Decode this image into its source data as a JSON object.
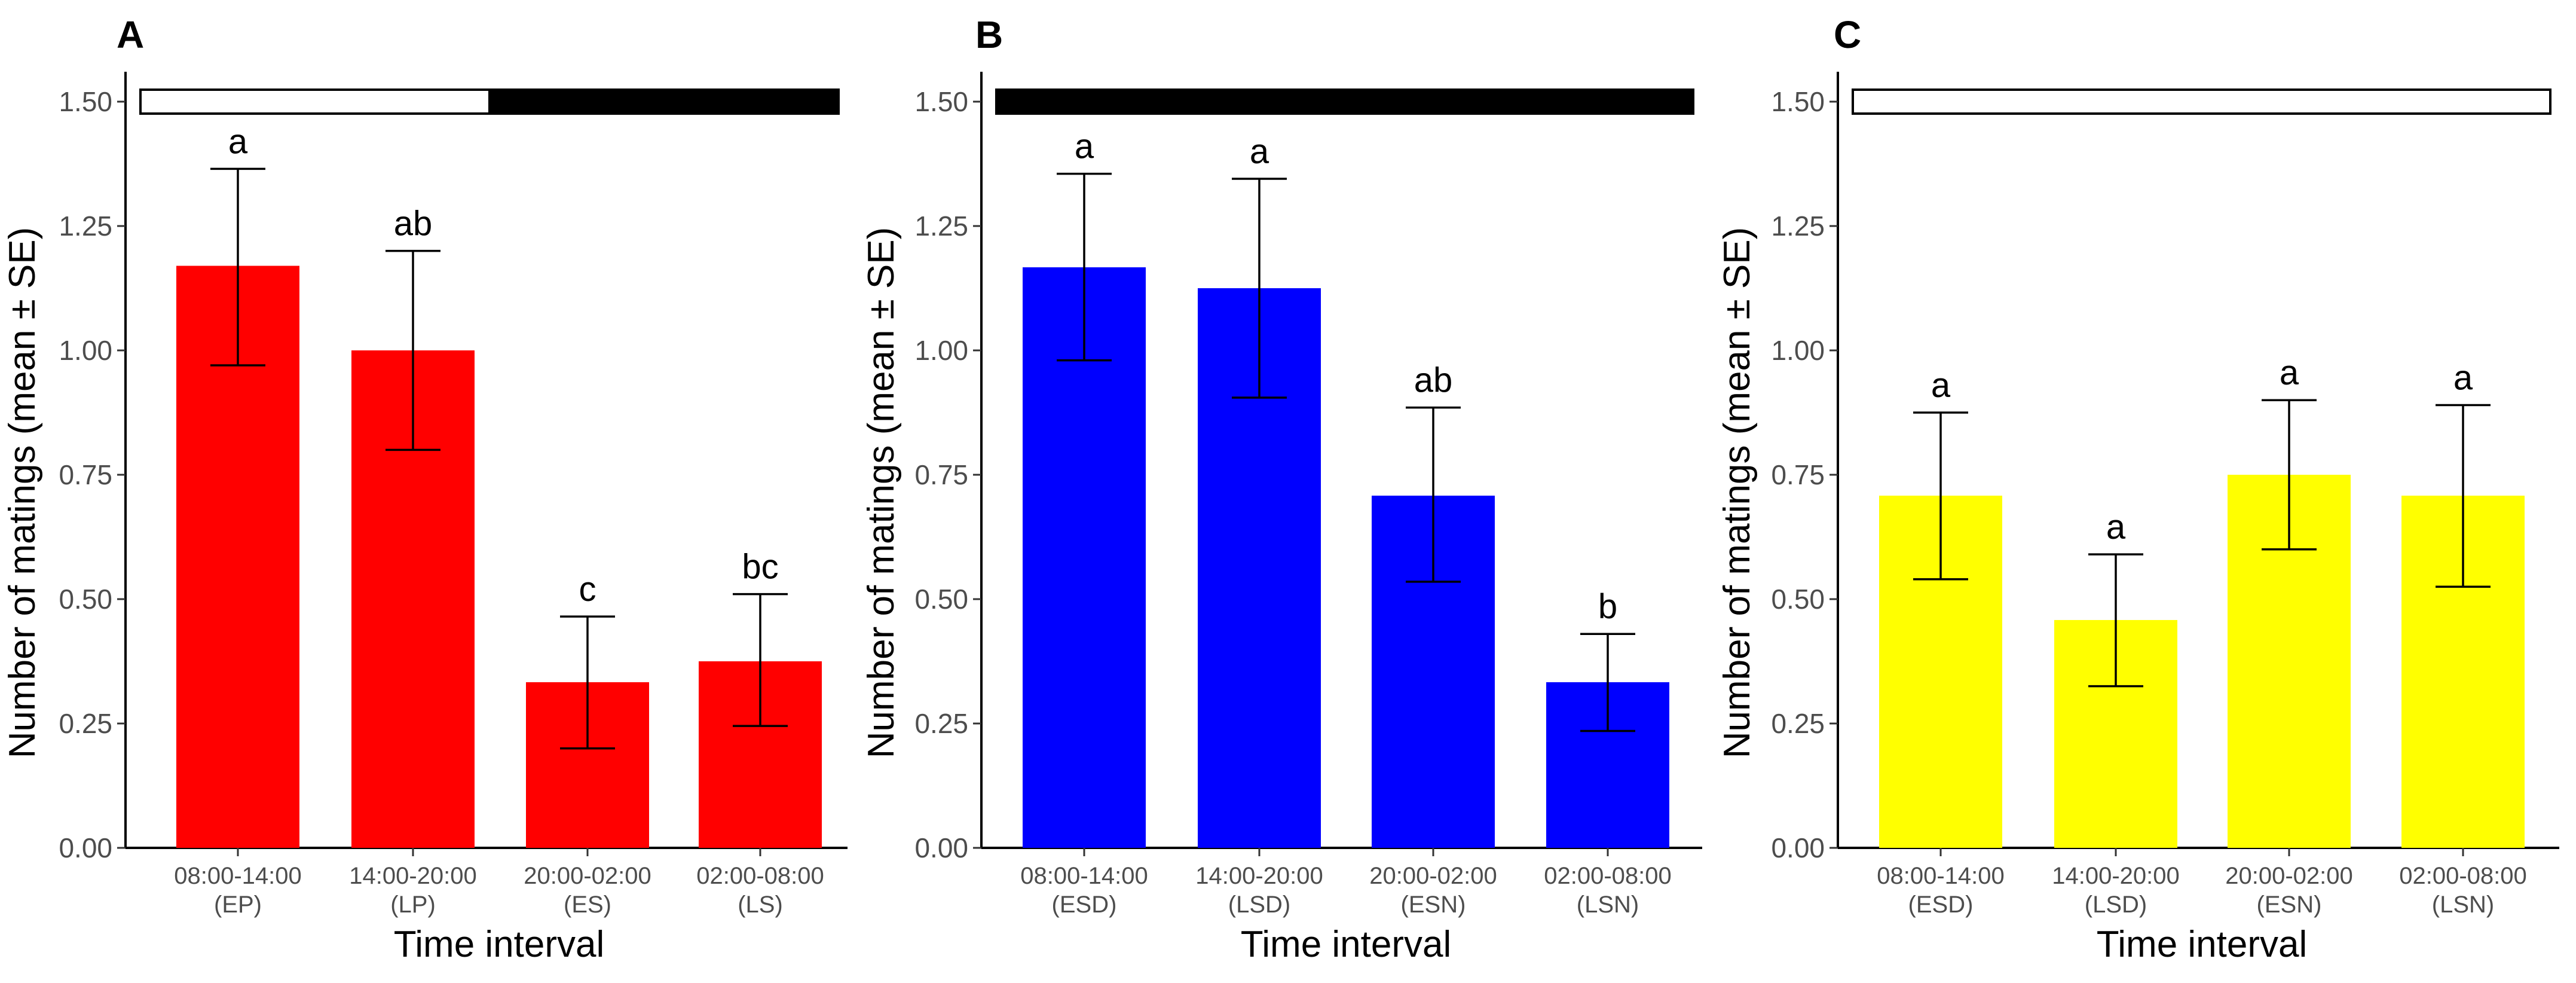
{
  "chart_data": [
    {
      "type": "bar",
      "panel": "A",
      "light_bar": "light then dark",
      "bar_color": "#ff0000",
      "categories": [
        "08:00-14:00\n(EP)",
        "14:00-20:00\n(LP)",
        "20:00-02:00\n(ES)",
        "02:00-08:00\n(LS)"
      ],
      "values": [
        1.17,
        1.0,
        0.333,
        0.375
      ],
      "error_low": [
        0.97,
        0.8,
        0.2,
        0.245
      ],
      "error_high": [
        1.365,
        1.2,
        0.465,
        0.51
      ],
      "significance": [
        "a",
        "ab",
        "c",
        "bc"
      ],
      "xlabel": "Time interval",
      "ylabel": "Number of matings (mean ± SE)",
      "ylim": [
        0,
        1.5
      ],
      "yticks": [
        "0.00",
        "0.25",
        "0.50",
        "0.75",
        "1.00",
        "1.25",
        "1.50"
      ]
    },
    {
      "type": "bar",
      "panel": "B",
      "light_bar": "dark",
      "bar_color": "#0000ff",
      "categories": [
        "08:00-14:00\n(ESD)",
        "14:00-20:00\n(LSD)",
        "20:00-02:00\n(ESN)",
        "02:00-08:00\n(LSN)"
      ],
      "values": [
        1.167,
        1.125,
        0.708,
        0.333
      ],
      "error_low": [
        0.98,
        0.905,
        0.535,
        0.235
      ],
      "error_high": [
        1.355,
        1.345,
        0.885,
        0.43
      ],
      "significance": [
        "a",
        "a",
        "ab",
        "b"
      ],
      "xlabel": "Time interval",
      "ylabel": "Number of matings (mean ± SE)",
      "ylim": [
        0,
        1.5
      ],
      "yticks": [
        "0.00",
        "0.25",
        "0.50",
        "0.75",
        "1.00",
        "1.25",
        "1.50"
      ]
    },
    {
      "type": "bar",
      "panel": "C",
      "light_bar": "light",
      "bar_color": "#ffff00",
      "categories": [
        "08:00-14:00\n(ESD)",
        "14:00-20:00\n(LSD)",
        "20:00-02:00\n(ESN)",
        "02:00-08:00\n(LSN)"
      ],
      "values": [
        0.708,
        0.458,
        0.75,
        0.708
      ],
      "error_low": [
        0.54,
        0.325,
        0.6,
        0.525
      ],
      "error_high": [
        0.875,
        0.59,
        0.9,
        0.89
      ],
      "significance": [
        "a",
        "a",
        "a",
        "a"
      ],
      "xlabel": "Time interval",
      "ylabel": "Number of matings (mean ± SE)",
      "ylim": [
        0,
        1.5
      ],
      "yticks": [
        "0.00",
        "0.25",
        "0.50",
        "0.75",
        "1.00",
        "1.25",
        "1.50"
      ]
    }
  ]
}
